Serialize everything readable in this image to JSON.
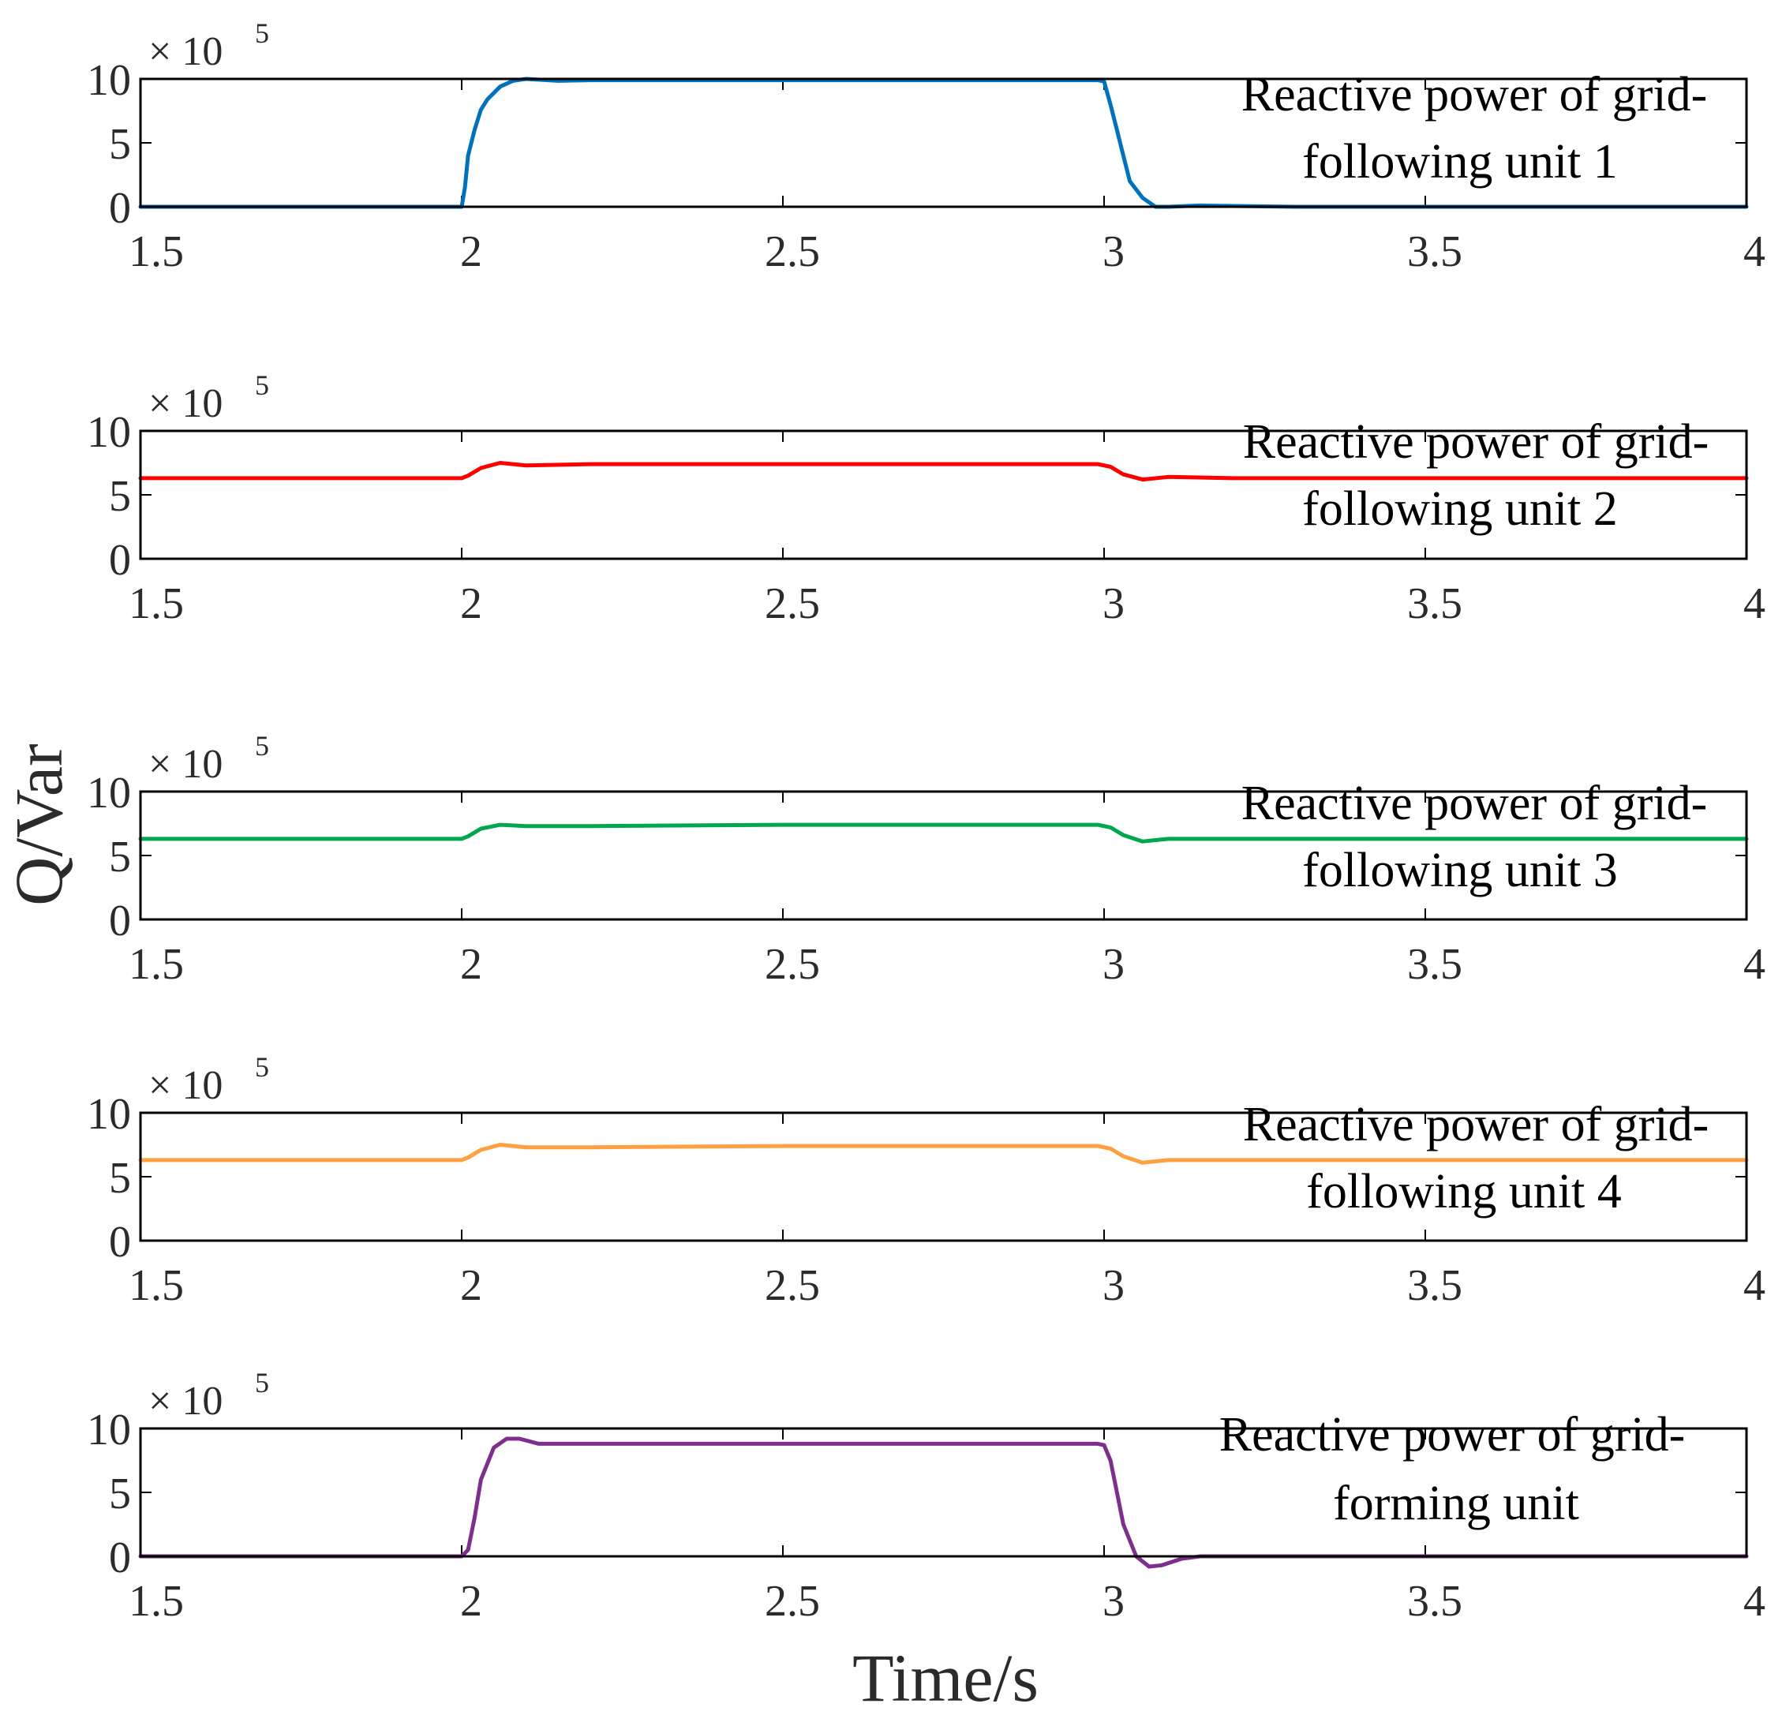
{
  "chart_data": {
    "type": "line",
    "xlabel": "Time/s",
    "ylabel": "Q/Var",
    "xlim": [
      1.5,
      4
    ],
    "ylim": [
      0,
      10
    ],
    "x_ticks": [
      "1.5",
      "2",
      "2.5",
      "3",
      "3.5",
      "4"
    ],
    "y_ticks": [
      "0",
      "5",
      "10"
    ],
    "y_scale_label": "× 10",
    "y_scale_exponent": "5",
    "panels": [
      {
        "legend_line1": "Reactive power of grid-",
        "legend_line2": "following unit 1",
        "color": "#0072BD",
        "points": [
          [
            1.5,
            0
          ],
          [
            2.0,
            0
          ],
          [
            2.005,
            1.5
          ],
          [
            2.01,
            4
          ],
          [
            2.02,
            6
          ],
          [
            2.03,
            7.6
          ],
          [
            2.04,
            8.4
          ],
          [
            2.05,
            8.9
          ],
          [
            2.06,
            9.4
          ],
          [
            2.08,
            9.85
          ],
          [
            2.1,
            10
          ],
          [
            2.15,
            9.85
          ],
          [
            2.2,
            9.9
          ],
          [
            2.5,
            9.9
          ],
          [
            2.8,
            9.9
          ],
          [
            2.99,
            9.9
          ],
          [
            3.0,
            9.8
          ],
          [
            3.01,
            8
          ],
          [
            3.02,
            6
          ],
          [
            3.03,
            4
          ],
          [
            3.04,
            2
          ],
          [
            3.06,
            0.7
          ],
          [
            3.08,
            0
          ],
          [
            3.1,
            0
          ],
          [
            3.15,
            0.1
          ],
          [
            3.3,
            0
          ],
          [
            4.0,
            0
          ]
        ]
      },
      {
        "legend_line1": "Reactive power of grid-",
        "legend_line2": "following unit 2",
        "color": "#FF0000",
        "points": [
          [
            1.5,
            6.3
          ],
          [
            2.0,
            6.3
          ],
          [
            2.01,
            6.5
          ],
          [
            2.03,
            7.1
          ],
          [
            2.06,
            7.5
          ],
          [
            2.1,
            7.3
          ],
          [
            2.2,
            7.4
          ],
          [
            2.5,
            7.4
          ],
          [
            2.99,
            7.4
          ],
          [
            3.01,
            7.2
          ],
          [
            3.03,
            6.6
          ],
          [
            3.06,
            6.2
          ],
          [
            3.1,
            6.4
          ],
          [
            3.2,
            6.3
          ],
          [
            4.0,
            6.3
          ]
        ]
      },
      {
        "legend_line1": "Reactive power of grid-",
        "legend_line2": "following unit 3",
        "color": "#00A651",
        "points": [
          [
            1.5,
            6.3
          ],
          [
            2.0,
            6.3
          ],
          [
            2.01,
            6.5
          ],
          [
            2.03,
            7.1
          ],
          [
            2.06,
            7.4
          ],
          [
            2.1,
            7.3
          ],
          [
            2.2,
            7.3
          ],
          [
            2.5,
            7.4
          ],
          [
            2.99,
            7.4
          ],
          [
            3.01,
            7.2
          ],
          [
            3.03,
            6.6
          ],
          [
            3.06,
            6.1
          ],
          [
            3.1,
            6.3
          ],
          [
            3.2,
            6.3
          ],
          [
            4.0,
            6.3
          ]
        ]
      },
      {
        "legend_line1": "Reactive power of grid-",
        "legend_line2": "following unit 4",
        "color": "#FFA040",
        "points": [
          [
            1.5,
            6.3
          ],
          [
            2.0,
            6.3
          ],
          [
            2.01,
            6.5
          ],
          [
            2.03,
            7.1
          ],
          [
            2.06,
            7.5
          ],
          [
            2.1,
            7.3
          ],
          [
            2.2,
            7.3
          ],
          [
            2.5,
            7.4
          ],
          [
            2.99,
            7.4
          ],
          [
            3.01,
            7.2
          ],
          [
            3.03,
            6.6
          ],
          [
            3.06,
            6.1
          ],
          [
            3.1,
            6.3
          ],
          [
            3.2,
            6.3
          ],
          [
            4.0,
            6.3
          ]
        ]
      },
      {
        "legend_line1": "Reactive power of grid-",
        "legend_line2": "forming unit",
        "color": "#7E2F8E",
        "points": [
          [
            1.5,
            0
          ],
          [
            2.0,
            0
          ],
          [
            2.01,
            0.5
          ],
          [
            2.02,
            3
          ],
          [
            2.03,
            6
          ],
          [
            2.05,
            8.5
          ],
          [
            2.07,
            9.2
          ],
          [
            2.09,
            9.2
          ],
          [
            2.12,
            8.8
          ],
          [
            2.2,
            8.8
          ],
          [
            2.5,
            8.8
          ],
          [
            2.99,
            8.8
          ],
          [
            3.0,
            8.7
          ],
          [
            3.01,
            7.5
          ],
          [
            3.02,
            5
          ],
          [
            3.03,
            2.5
          ],
          [
            3.05,
            0
          ],
          [
            3.07,
            -0.8
          ],
          [
            3.09,
            -0.7
          ],
          [
            3.12,
            -0.2
          ],
          [
            3.15,
            0
          ],
          [
            3.2,
            0
          ],
          [
            4.0,
            0
          ]
        ]
      }
    ]
  }
}
